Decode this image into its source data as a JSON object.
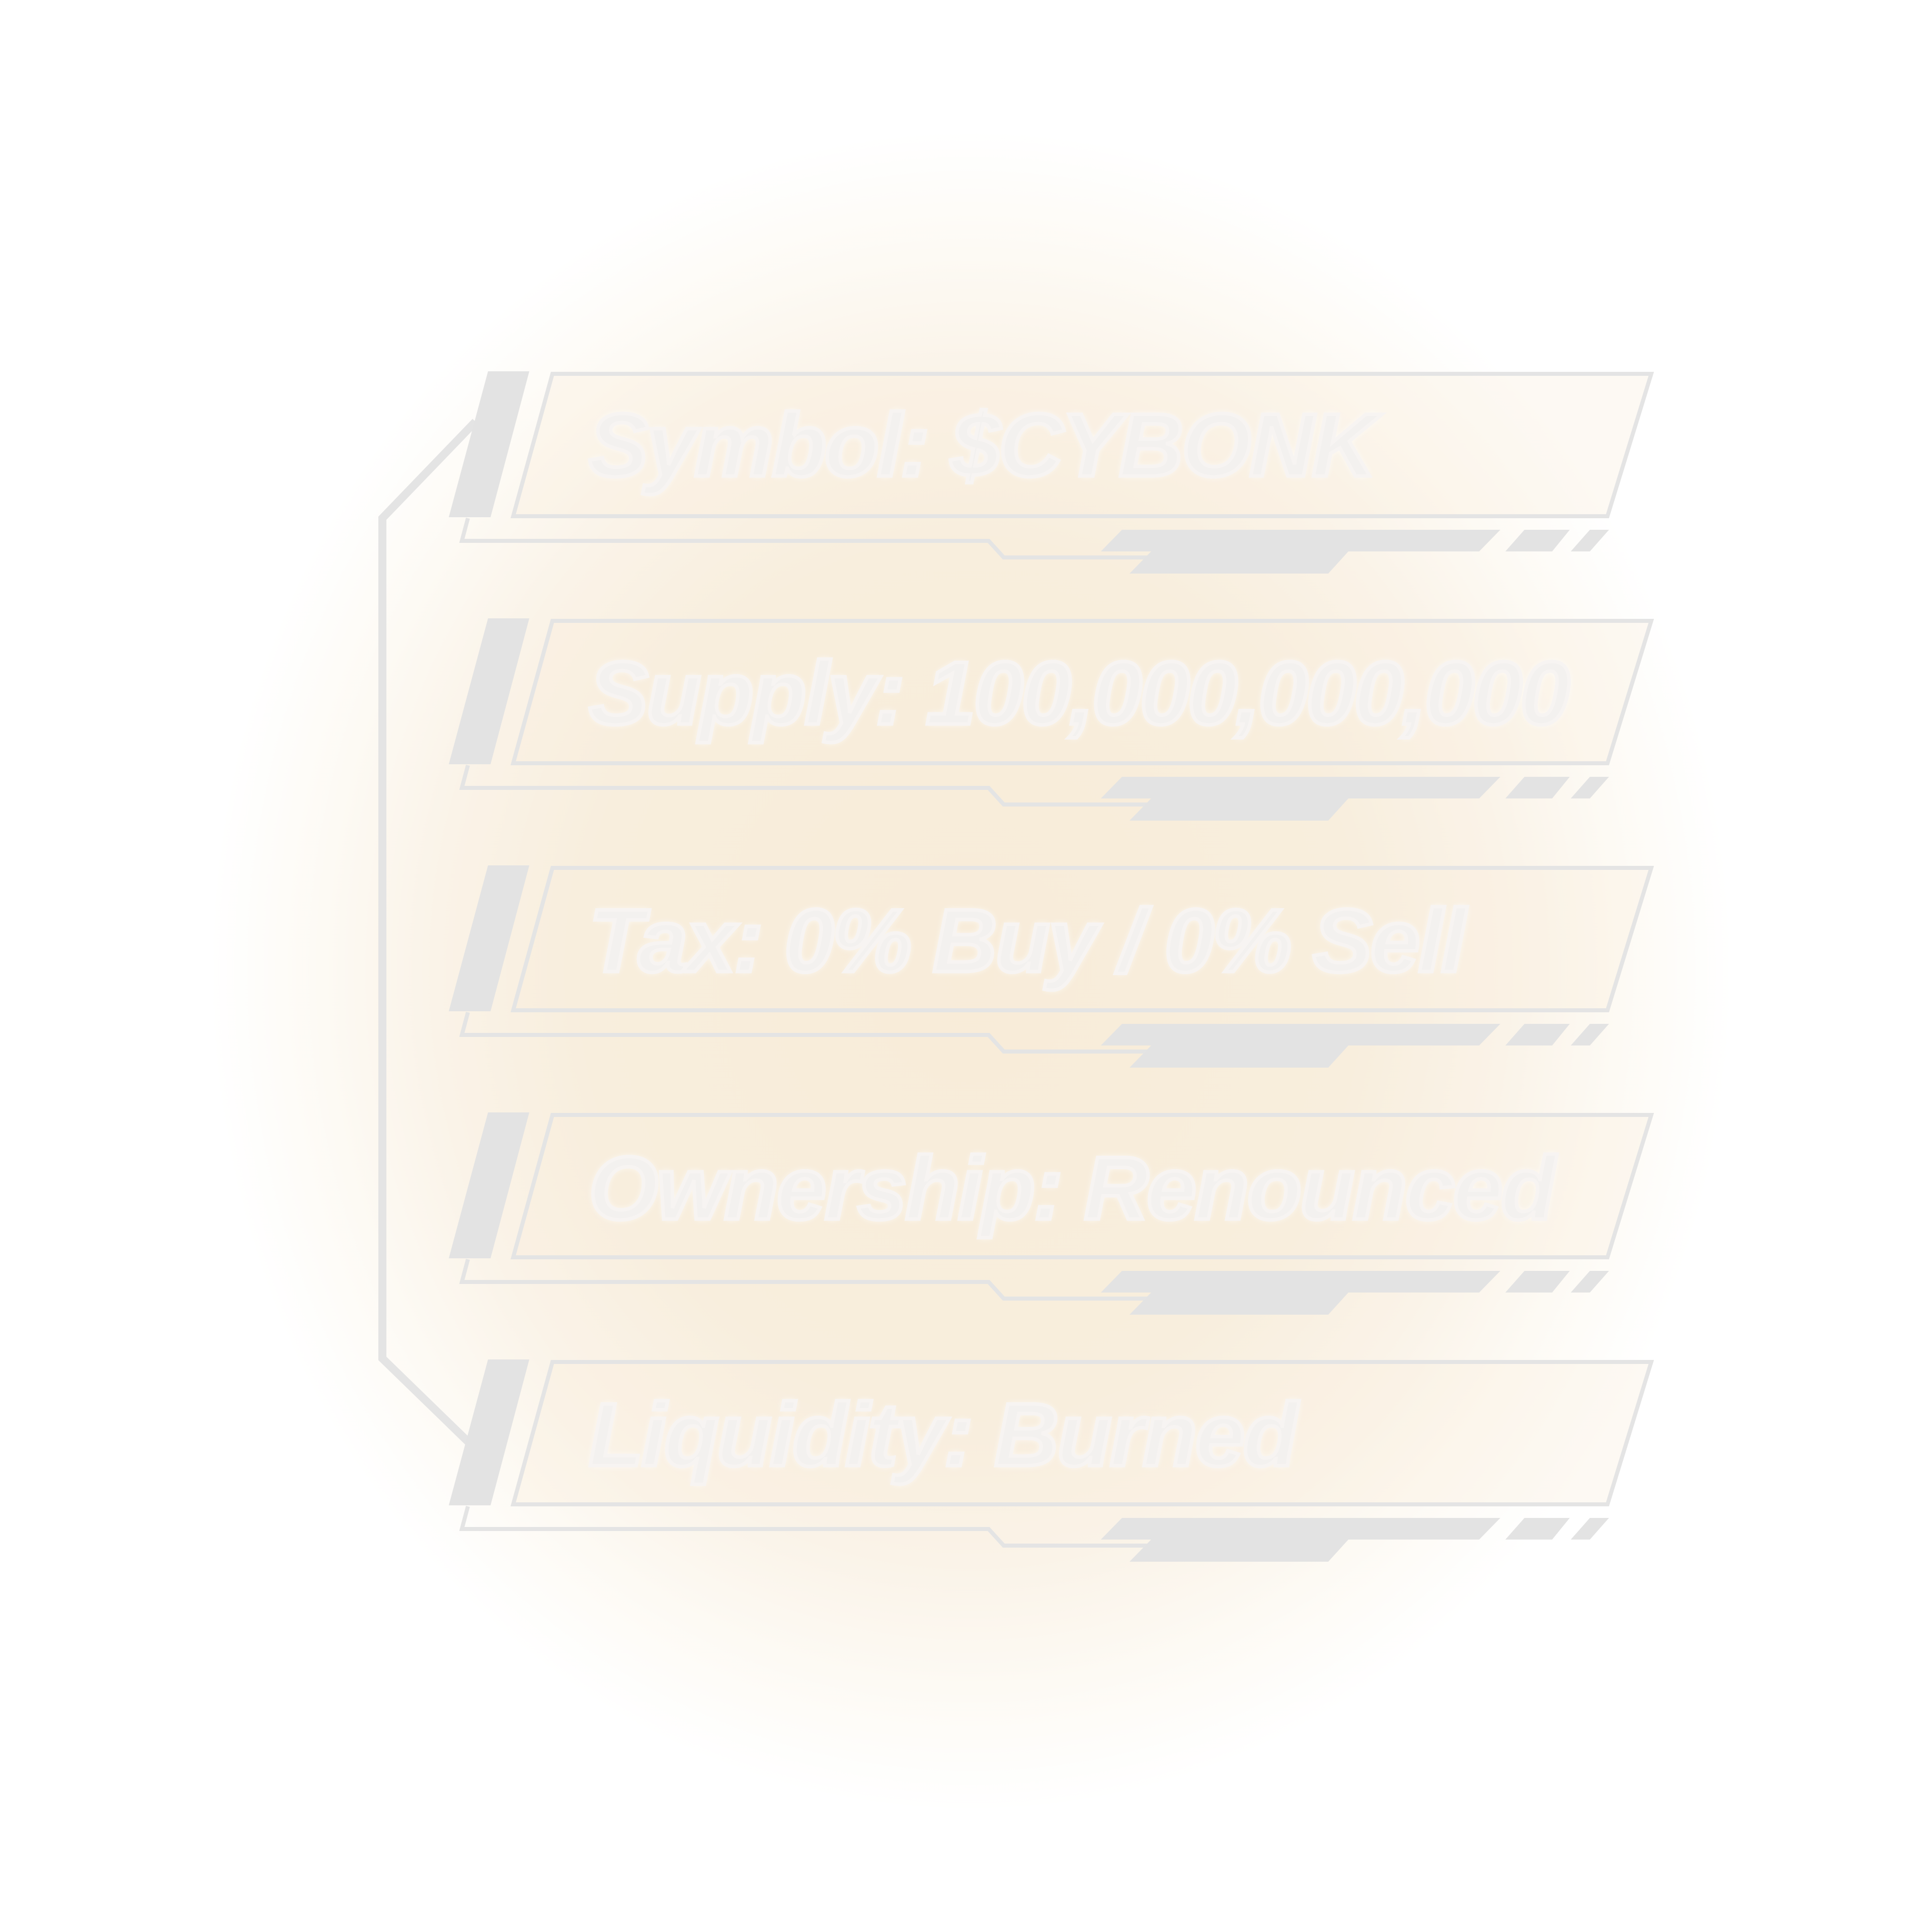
{
  "tokenomics": {
    "rows": [
      {
        "label": "Symbol: $CYBONK"
      },
      {
        "label": "Supply: 100,000,000,000"
      },
      {
        "label": "Tax: 0% Buy / 0% Sell"
      },
      {
        "label": "Ownership: Renounced"
      },
      {
        "label": "Liquidity: Burned"
      }
    ]
  },
  "colors": {
    "glow": "#f8ecd8",
    "frame_line": "#e4e4e4",
    "text": "#f3f1ef"
  }
}
